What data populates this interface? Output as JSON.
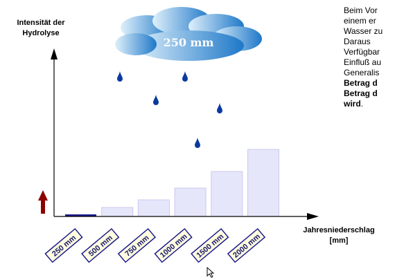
{
  "y_axis_label_line1": "Intensität der",
  "y_axis_label_line2": "Hydrolyse",
  "x_axis_label_line1": "Jahresniederschlag",
  "x_axis_label_line2": "[mm]",
  "cloud_label": "250 mm",
  "side_text": {
    "line1": "Beim Vor",
    "line2": "einem er",
    "line3": "Wasser zu",
    "line4": "Daraus",
    "line5": "Verfügbar",
    "line6": "Einfluß au",
    "line7": "Generalis",
    "line8_bold": "Betrag d",
    "line9_bold": "Betrag d",
    "line10_bold": "wird",
    "line10_rest": "."
  },
  "colors": {
    "bar_fill": "#e6e6fb",
    "bar_stroke": "#c8c8ee",
    "active_bar": "#1a1a8c",
    "drop": "#0a3aa0",
    "cloud_light": "#dff0fb",
    "cloud_dark": "#1e78c8",
    "arrow_red": "#8b0000",
    "label_stroke": "#1a1a8c",
    "label_fill": "#fffce0"
  },
  "chart_data": {
    "type": "bar",
    "categories": [
      "250 mm",
      "500 mm",
      "750 mm",
      "1000 mm",
      "1500 mm",
      "2000 mm"
    ],
    "values": [
      3,
      13,
      24,
      41,
      65,
      97
    ],
    "ylim": [
      0,
      130
    ],
    "highlighted_index": 0
  }
}
